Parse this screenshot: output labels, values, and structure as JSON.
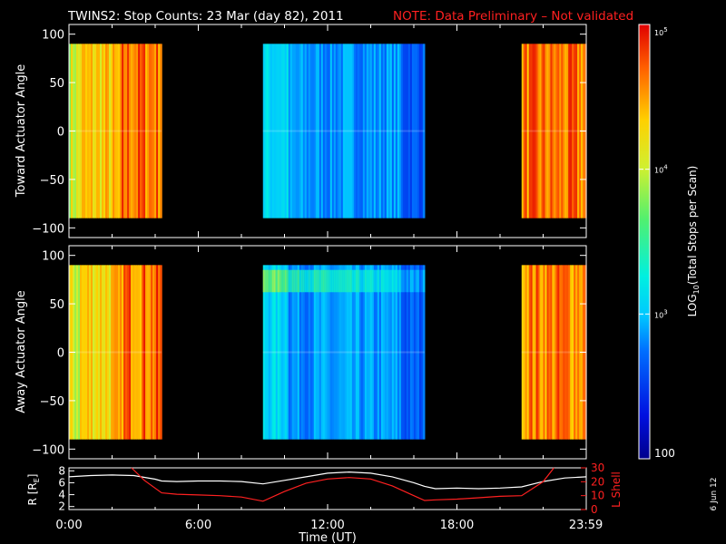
{
  "title": {
    "main": "TWINS2: Stop Counts: 23 Mar (day  82), 2011",
    "note": "NOTE: Data Preliminary – Not validated",
    "note_color": "#ff2020"
  },
  "date_stamp": "6 Jun 12",
  "colorbar": {
    "label": "LOG10(Total Stops per Scan)",
    "label_prefix": "LOG",
    "label_sub": "10",
    "label_suffix": "(Total Stops per Scan)",
    "ticks": [
      {
        "value": 100,
        "label": "100"
      },
      {
        "value": 1000,
        "label": "10",
        "exp": "3"
      },
      {
        "value": 10000,
        "label": "10",
        "exp": "4"
      },
      {
        "value": 100000,
        "label": "10",
        "exp": "5"
      }
    ],
    "range": [
      100,
      100000
    ],
    "scale": "log"
  },
  "chart_data": [
    {
      "type": "heatmap",
      "ylabel": "Toward Actuator Angle",
      "ylim": [
        -110,
        110
      ],
      "yticks": [
        100,
        50,
        0,
        -50,
        -100
      ],
      "ytick_labels": [
        "100",
        "50",
        "0",
        "−50",
        "−100"
      ],
      "xlim": [
        0,
        24
      ],
      "data_y_range": [
        -90,
        90
      ],
      "segments": [
        {
          "t_start": 0.0,
          "t_end": 4.3,
          "level": "high",
          "typical_counts": 20000
        },
        {
          "t_start": 9.0,
          "t_end": 16.5,
          "level": "low",
          "typical_counts": 700
        },
        {
          "t_start": 21.0,
          "t_end": 24.0,
          "level": "high",
          "typical_counts": 40000
        }
      ]
    },
    {
      "type": "heatmap",
      "ylabel": "Away Actuator Angle",
      "ylim": [
        -110,
        110
      ],
      "yticks": [
        100,
        50,
        0,
        -50,
        -100
      ],
      "ytick_labels": [
        "100",
        "50",
        "0",
        "−50",
        "−100"
      ],
      "xlim": [
        0,
        24
      ],
      "data_y_range": [
        -90,
        90
      ],
      "segments": [
        {
          "t_start": 0.0,
          "t_end": 4.3,
          "level": "high",
          "typical_counts": 20000
        },
        {
          "t_start": 9.0,
          "t_end": 16.5,
          "level": "low",
          "typical_counts": 700,
          "note": "enhanced band near 75 deg"
        },
        {
          "t_start": 21.0,
          "t_end": 24.0,
          "level": "high",
          "typical_counts": 40000
        }
      ]
    },
    {
      "type": "line",
      "ylabel": "R [RE]",
      "ylabel_text": "R [R",
      "ylabel_sub": "E",
      "ylabel_end": "]",
      "ylabel2": "L Shell",
      "xlabel": "Time (UT)",
      "xlim": [
        0,
        24
      ],
      "xticks": [
        0,
        6,
        12,
        18,
        23.983
      ],
      "xtick_labels": [
        "0:00",
        "6:00",
        "12:00",
        "18:00",
        "23:59"
      ],
      "ylim": [
        1.5,
        8.5
      ],
      "yticks": [
        2,
        4,
        6,
        8
      ],
      "ytick_labels": [
        "2",
        "4",
        "6",
        "8"
      ],
      "ylim2": [
        0,
        30
      ],
      "yticks2": [
        0,
        10,
        20,
        30
      ],
      "ytick2_labels": [
        "0",
        "10",
        "20",
        "30"
      ],
      "series": [
        {
          "axis": "left",
          "color": "#ffffff",
          "x": [
            0,
            1,
            2,
            3,
            4,
            4.3,
            5,
            6,
            7,
            8,
            9,
            10,
            11,
            12,
            13,
            14,
            15,
            16,
            16.5,
            17,
            18,
            19,
            20,
            21,
            22,
            23,
            24
          ],
          "y": [
            7.0,
            7.2,
            7.3,
            7.2,
            6.6,
            6.3,
            6.2,
            6.3,
            6.3,
            6.2,
            5.8,
            6.4,
            7.0,
            7.6,
            7.8,
            7.6,
            7.0,
            6.0,
            5.4,
            5.0,
            5.1,
            5.0,
            5.1,
            5.3,
            6.2,
            6.8,
            7.0
          ]
        },
        {
          "axis": "right",
          "color": "#ff2020",
          "x": [
            2.9,
            3.5,
            4.3,
            5,
            6,
            7,
            8,
            9,
            10,
            11,
            12,
            13,
            14,
            15,
            16,
            16.5,
            17,
            18,
            19,
            20,
            21,
            22,
            22.5
          ],
          "y": [
            30,
            21,
            12,
            11,
            10.5,
            10,
            9,
            6,
            13,
            19,
            22,
            23,
            22,
            17,
            10,
            6.5,
            7,
            7.5,
            8.5,
            9.5,
            10,
            20,
            30
          ]
        }
      ]
    }
  ]
}
